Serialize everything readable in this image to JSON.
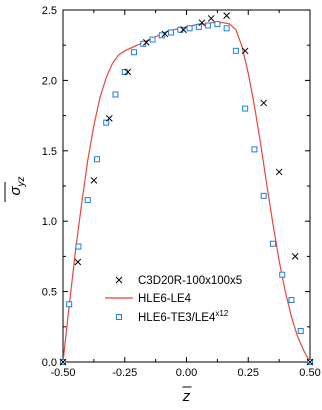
{
  "chart_data": {
    "type": "line",
    "xlabel": "z",
    "ylabel": "σ",
    "ylabel_sub": "yz",
    "xlim": [
      -0.5,
      0.5
    ],
    "ylim": [
      0.0,
      2.5
    ],
    "x_ticks": [
      "-0.50",
      "-0.25",
      "0.00",
      "0.25",
      "0.50"
    ],
    "y_ticks": [
      "0.0",
      "0.5",
      "1.0",
      "1.5",
      "2.0",
      "2.5"
    ],
    "legend": [
      {
        "label": "C3D20R-100x100x5",
        "marker": "cross",
        "color": "#000000"
      },
      {
        "label": "HLE6-LE4",
        "marker": "line",
        "color": "#e8453c"
      },
      {
        "label": "HLE6-TE3/LE4",
        "superscript": "x12",
        "marker": "square",
        "color": "#1a7fe0"
      }
    ],
    "series": [
      {
        "name": "C3D20R-100x100x5",
        "x": [
          -0.5,
          -0.44,
          -0.375,
          -0.3125,
          -0.2375,
          -0.1625,
          -0.0875,
          -0.0125,
          0.0625,
          0.1,
          0.1625,
          0.2375,
          0.3125,
          0.375,
          0.44,
          0.5
        ],
        "y": [
          0.0,
          0.71,
          1.29,
          1.73,
          2.06,
          2.27,
          2.33,
          2.36,
          2.41,
          2.44,
          2.46,
          2.21,
          1.84,
          1.35,
          0.75,
          0.0
        ]
      },
      {
        "name": "HLE6-LE4",
        "x": [
          -0.5,
          -0.475,
          -0.45,
          -0.425,
          -0.4,
          -0.375,
          -0.35,
          -0.325,
          -0.3,
          -0.275,
          -0.25,
          -0.225,
          -0.2,
          -0.175,
          -0.15,
          -0.125,
          -0.1,
          -0.075,
          -0.05,
          -0.025,
          0.0,
          0.025,
          0.05,
          0.075,
          0.1,
          0.125,
          0.15,
          0.175,
          0.2,
          0.225,
          0.25,
          0.275,
          0.3,
          0.325,
          0.35,
          0.375,
          0.4,
          0.425,
          0.45,
          0.475,
          0.5
        ],
        "y": [
          0.0,
          0.4,
          0.78,
          1.12,
          1.43,
          1.68,
          1.88,
          2.02,
          2.12,
          2.18,
          2.21,
          2.23,
          2.25,
          2.27,
          2.29,
          2.31,
          2.33,
          2.35,
          2.36,
          2.37,
          2.38,
          2.39,
          2.4,
          2.4,
          2.41,
          2.41,
          2.41,
          2.4,
          2.36,
          2.24,
          2.05,
          1.82,
          1.55,
          1.26,
          0.98,
          0.72,
          0.5,
          0.32,
          0.18,
          0.08,
          0.0
        ]
      },
      {
        "name": "HLE6-TE3/LE4",
        "x": [
          -0.5,
          -0.475,
          -0.4375,
          -0.4,
          -0.3625,
          -0.325,
          -0.2875,
          -0.25,
          -0.2125,
          -0.175,
          -0.1375,
          -0.1,
          -0.0625,
          -0.025,
          0.0125,
          0.05,
          0.0875,
          0.125,
          0.1625,
          0.2,
          0.2375,
          0.275,
          0.3125,
          0.35,
          0.3875,
          0.425,
          0.4625,
          0.5
        ],
        "y": [
          0.0,
          0.41,
          0.82,
          1.15,
          1.44,
          1.7,
          1.9,
          2.06,
          2.2,
          2.26,
          2.29,
          2.32,
          2.34,
          2.36,
          2.37,
          2.38,
          2.39,
          2.4,
          2.37,
          2.21,
          1.8,
          1.51,
          1.18,
          0.84,
          0.62,
          0.44,
          0.22,
          0.0
        ]
      }
    ]
  }
}
